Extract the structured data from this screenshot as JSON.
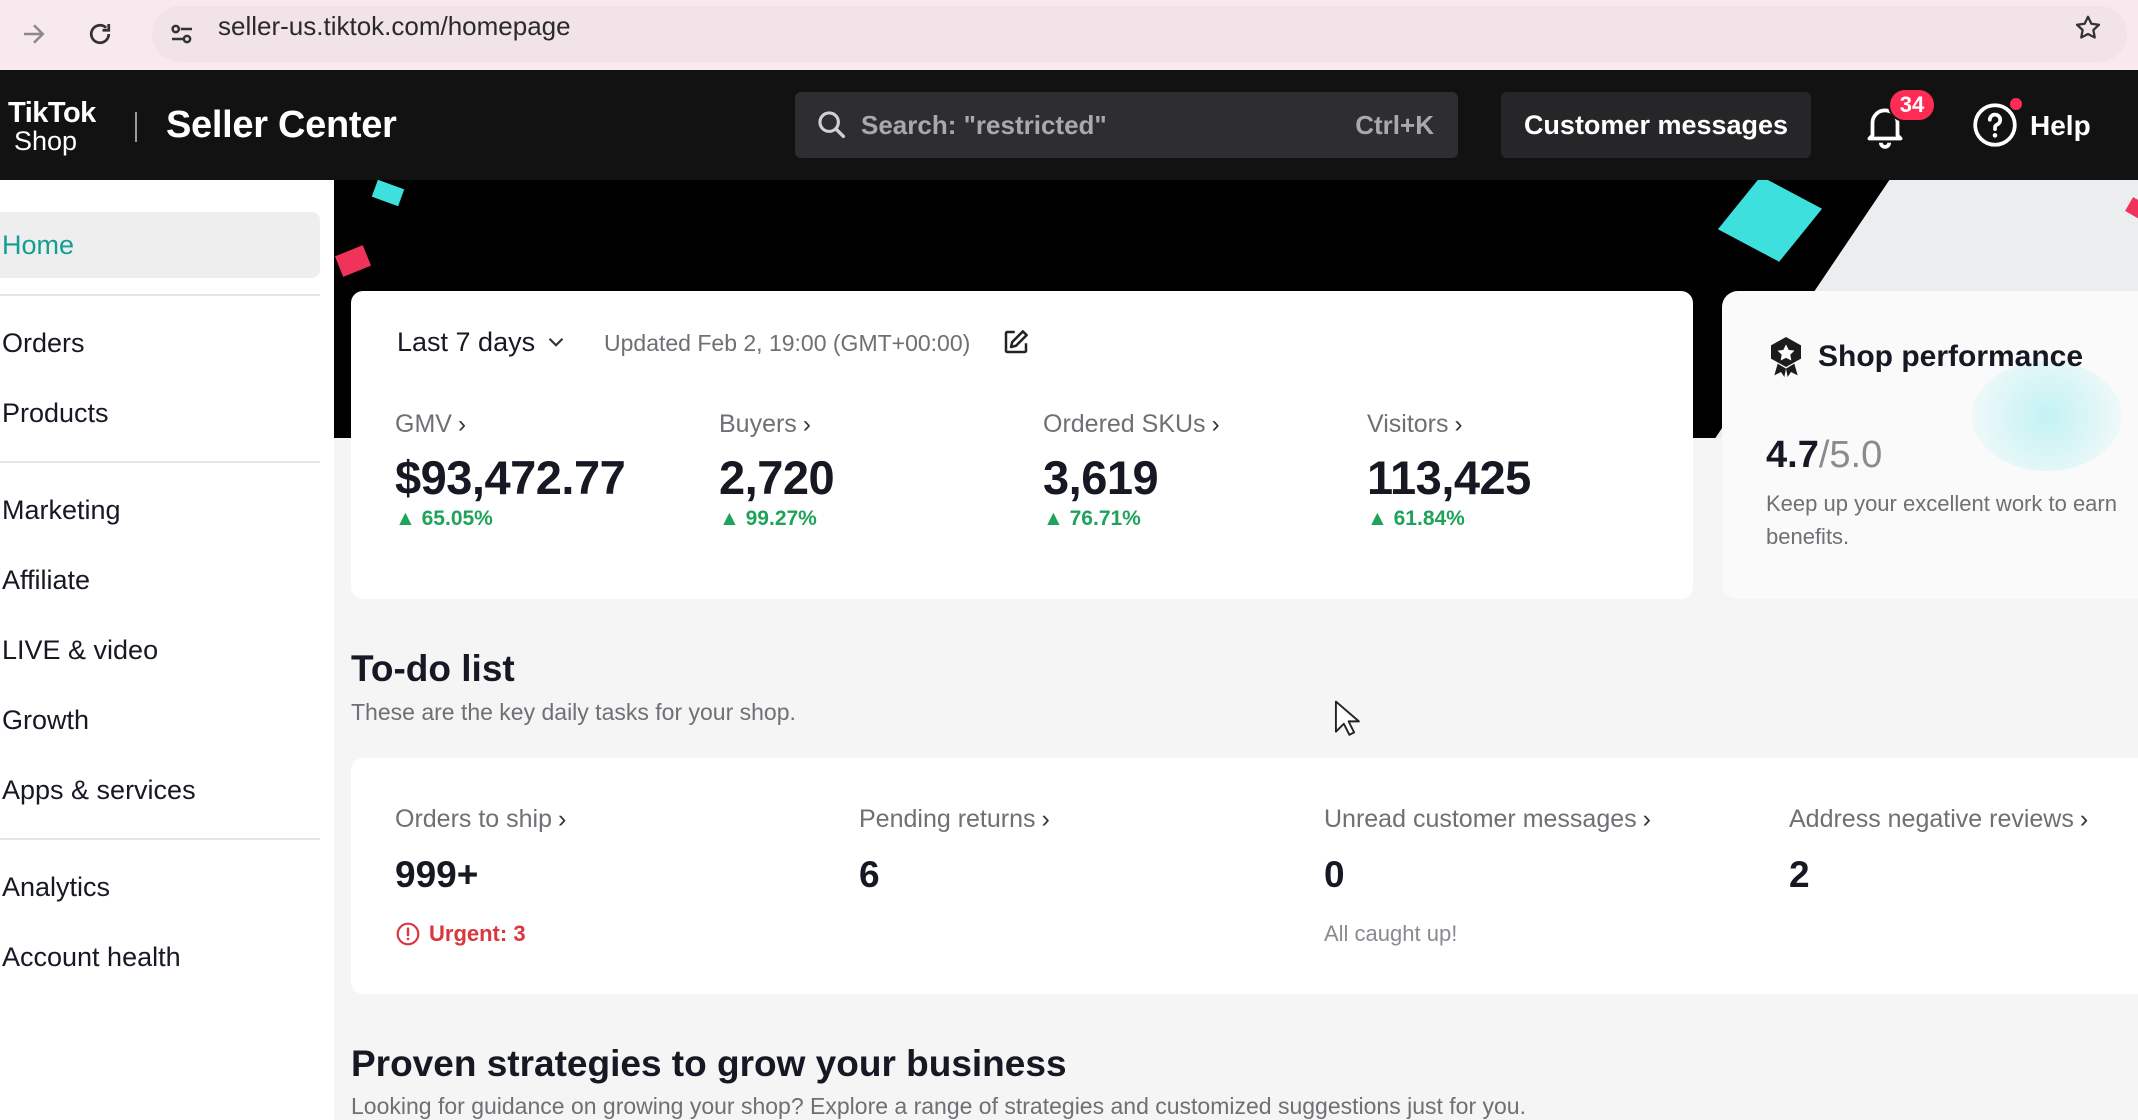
{
  "browser": {
    "url": "seller-us.tiktok.com/homepage"
  },
  "header": {
    "logo_line1": "TikTok",
    "logo_line2": "Shop",
    "title": "Seller Center",
    "search_placeholder": "Search: \"restricted\"",
    "search_shortcut": "Ctrl+K",
    "customer_messages_label": "Customer messages",
    "notification_count": "34",
    "help_label": "Help"
  },
  "sidebar": {
    "items": [
      {
        "label": "Home",
        "active": true
      },
      {
        "label": "Orders"
      },
      {
        "label": "Products"
      },
      {
        "label": "Marketing"
      },
      {
        "label": "Affiliate"
      },
      {
        "label": "LIVE & video"
      },
      {
        "label": "Growth"
      },
      {
        "label": "Apps & services"
      },
      {
        "label": "Analytics"
      },
      {
        "label": "Account health"
      }
    ]
  },
  "metrics": {
    "range_label": "Last 7 days",
    "updated_text": "Updated Feb 2, 19:00 (GMT+00:00)",
    "items": [
      {
        "label": "GMV",
        "value": "$93,472.77",
        "delta": "65.05%"
      },
      {
        "label": "Buyers",
        "value": "2,720",
        "delta": "99.27%"
      },
      {
        "label": "Ordered SKUs",
        "value": "3,619",
        "delta": "76.71%"
      },
      {
        "label": "Visitors",
        "value": "113,425",
        "delta": "61.84%"
      }
    ]
  },
  "shop_performance": {
    "title": "Shop performance",
    "score": "4.7",
    "score_max": "/5.0",
    "description_line1": "Keep up your excellent work to earn",
    "description_line2": "benefits."
  },
  "todo": {
    "title": "To-do list",
    "subtitle": "These are the key daily tasks for your shop.",
    "items": [
      {
        "label": "Orders to ship",
        "value": "999+",
        "note": "Urgent: 3"
      },
      {
        "label": "Pending returns",
        "value": "6",
        "note": ""
      },
      {
        "label": "Unread customer messages",
        "value": "0",
        "note": "All caught up!"
      },
      {
        "label": "Address negative reviews",
        "value": "2",
        "note": ""
      }
    ]
  },
  "strategies": {
    "title": "Proven strategies to grow your business",
    "subtitle": "Looking for guidance on growing your shop? Explore a range of strategies and customized suggestions just for you."
  },
  "colors": {
    "accent_teal": "#139e94",
    "positive_green": "#1fa35a",
    "urgent_red": "#d9363e",
    "badge_pink": "#fe2c55",
    "header_bg": "#121212"
  },
  "icons": [
    "forward-arrow-icon",
    "reload-icon",
    "site-settings-icon",
    "star-icon",
    "search-icon",
    "bell-icon",
    "help-icon",
    "chevron-down-icon",
    "edit-icon",
    "badge-star-icon",
    "alert-icon",
    "mouse-cursor-icon"
  ]
}
